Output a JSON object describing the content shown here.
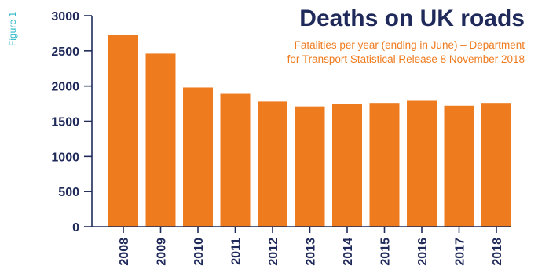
{
  "figure_tag": "Figure 1",
  "colors": {
    "bar": "#ef7b1f",
    "title": "#1f2a5a",
    "subtitle": "#ef7b1f",
    "figure_tag": "#2bb8c6",
    "axis": "#1f2a5a"
  },
  "chart_data": {
    "type": "bar",
    "title": "Deaths on UK roads",
    "subtitle_lines": [
      "Fatalities per year (ending in June) – Department",
      "for Transport Statistical Release 8 November 2018"
    ],
    "categories": [
      "2008",
      "2009",
      "2010",
      "2011",
      "2012",
      "2013",
      "2014",
      "2015",
      "2016",
      "2017",
      "2018"
    ],
    "values": [
      2730,
      2460,
      1980,
      1890,
      1780,
      1710,
      1740,
      1760,
      1790,
      1720,
      1760
    ],
    "ylim": [
      0,
      3000
    ],
    "yticks": [
      0,
      500,
      1000,
      1500,
      2000,
      2500,
      3000
    ],
    "xlabel": "",
    "ylabel": "",
    "grid": false
  }
}
